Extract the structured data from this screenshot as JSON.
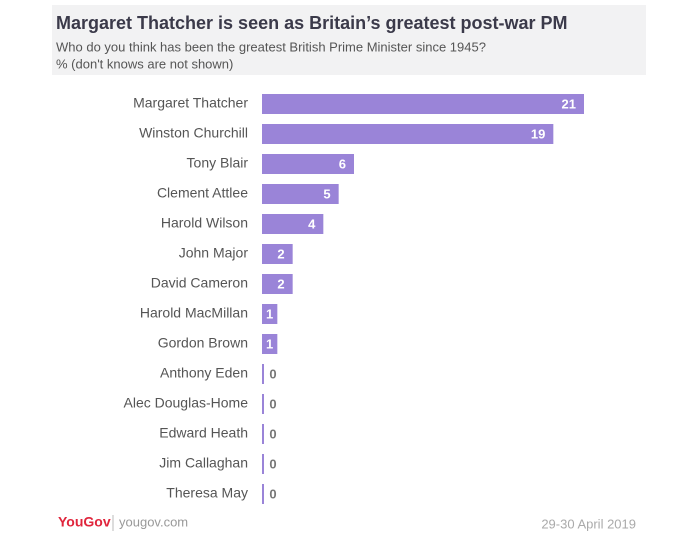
{
  "chart_data": {
    "type": "bar",
    "orientation": "horizontal",
    "title": "Margaret Thatcher is seen as Britain’s greatest post-war PM",
    "subtitle": [
      "Who do you think has been the greatest British Prime Minister since 1945?",
      "% (don't knows are not shown)"
    ],
    "categories": [
      "Margaret Thatcher",
      "Winston Churchill",
      "Tony Blair",
      "Clement Attlee",
      "Harold Wilson",
      "John Major",
      "David Cameron",
      "Harold MacMillan",
      "Gordon Brown",
      "Anthony Eden",
      "Alec Douglas-Home",
      "Edward Heath",
      "Jim Callaghan",
      "Theresa May"
    ],
    "values": [
      21,
      19,
      6,
      5,
      4,
      2,
      2,
      1,
      1,
      0,
      0,
      0,
      0,
      0
    ],
    "color": "#9a84d8",
    "footer": {
      "brand": "YouGov",
      "site": "yougov.com",
      "date": "29-30 April 2019"
    }
  }
}
